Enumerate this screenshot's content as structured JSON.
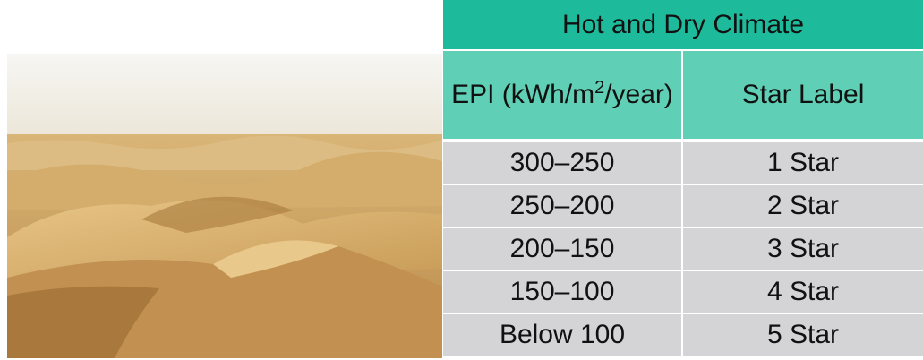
{
  "table": {
    "title": "Hot and Dry Climate",
    "header": [
      {
        "before": "EPI (kWh/m",
        "superscript": "2",
        "after": "/year)"
      },
      "Star Label"
    ],
    "rows": [
      [
        "300–250",
        "1 Star"
      ],
      [
        "250–200",
        "2 Star"
      ],
      [
        "200–150",
        "3 Star"
      ],
      [
        "150–100",
        "4 Star"
      ],
      [
        "Below 100",
        "5 Star"
      ]
    ]
  }
}
